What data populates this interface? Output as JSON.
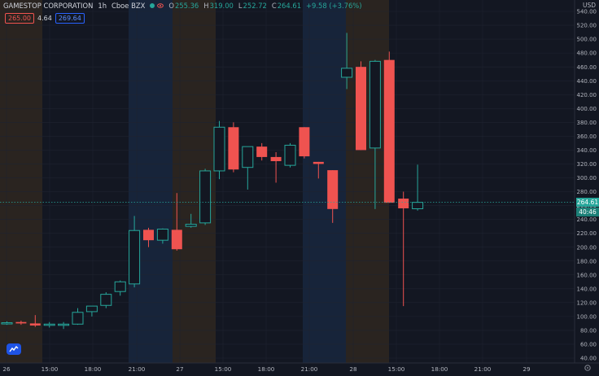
{
  "header": {
    "symbol": "GAMESTOP CORPORATION",
    "interval": "1h",
    "exchange": "Cboe BZX",
    "open_label": "O",
    "open_value": "255.36",
    "high_label": "H",
    "high_value": "319.00",
    "low_label": "L",
    "low_value": "252.72",
    "close_label": "C",
    "close_value": "264.61",
    "change_text": "+9.58 (+3.76%)"
  },
  "quote": {
    "sell": "265.00",
    "spread": "4.64",
    "buy": "269.64"
  },
  "price_axis": {
    "currency": "USD",
    "ticks": [
      "540.00",
      "520.00",
      "500.00",
      "480.00",
      "460.00",
      "440.00",
      "420.00",
      "400.00",
      "380.00",
      "360.00",
      "340.00",
      "320.00",
      "300.00",
      "280.00",
      "260.00",
      "240.00",
      "220.00",
      "200.00",
      "180.00",
      "160.00",
      "140.00",
      "120.00",
      "100.00",
      "80.00",
      "60.00",
      "40.00"
    ],
    "last_price_label": "264.61",
    "countdown_label": "40:46"
  },
  "time_axis": {
    "labels": [
      "26",
      "15:00",
      "18:00",
      "21:00",
      "27",
      "15:00",
      "18:00",
      "21:00",
      "28",
      "15:00",
      "18:00",
      "21:00",
      "29"
    ]
  },
  "colors": {
    "background": "#131722",
    "up": "#26a69a",
    "down": "#ef5350",
    "session_pre": "#2a2420",
    "session_post": "#17243a",
    "grid": "#1f2330"
  },
  "chart_data": {
    "type": "candlestick",
    "title": "GAMESTOP CORPORATION · 1h · Cboe BZX",
    "xlabel": "",
    "ylabel": "",
    "currency": "USD",
    "ylim": [
      40,
      545
    ],
    "last_price": 264.61,
    "candles": [
      {
        "o": 90,
        "h": 93,
        "l": 88,
        "c": 91
      },
      {
        "o": 92,
        "h": 94,
        "l": 88,
        "c": 90
      },
      {
        "o": 90,
        "h": 102,
        "l": 85,
        "c": 87
      },
      {
        "o": 88,
        "h": 92,
        "l": 84,
        "c": 89
      },
      {
        "o": 88,
        "h": 92,
        "l": 82,
        "c": 89
      },
      {
        "o": 89,
        "h": 112,
        "l": 88,
        "c": 106
      },
      {
        "o": 107,
        "h": 115,
        "l": 100,
        "c": 115
      },
      {
        "o": 116,
        "h": 135,
        "l": 112,
        "c": 132
      },
      {
        "o": 136,
        "h": 152,
        "l": 130,
        "c": 150
      },
      {
        "o": 147,
        "h": 245,
        "l": 142,
        "c": 224
      },
      {
        "o": 225,
        "h": 228,
        "l": 200,
        "c": 210
      },
      {
        "o": 210,
        "h": 227,
        "l": 205,
        "c": 226
      },
      {
        "o": 225,
        "h": 278,
        "l": 195,
        "c": 197
      },
      {
        "o": 230,
        "h": 248,
        "l": 228,
        "c": 233
      },
      {
        "o": 235,
        "h": 313,
        "l": 232,
        "c": 310
      },
      {
        "o": 310,
        "h": 382,
        "l": 298,
        "c": 373
      },
      {
        "o": 373,
        "h": 380,
        "l": 308,
        "c": 312
      },
      {
        "o": 315,
        "h": 345,
        "l": 283,
        "c": 345
      },
      {
        "o": 345,
        "h": 350,
        "l": 325,
        "c": 330
      },
      {
        "o": 330,
        "h": 337,
        "l": 293,
        "c": 324
      },
      {
        "o": 318,
        "h": 350,
        "l": 315,
        "c": 347
      },
      {
        "o": 373,
        "h": 373,
        "l": 328,
        "c": 331
      },
      {
        "o": 323,
        "h": 323,
        "l": 299,
        "c": 320
      },
      {
        "o": 311,
        "h": 311,
        "l": 235,
        "c": 255
      },
      {
        "o": 445,
        "h": 509,
        "l": 428,
        "c": 458
      },
      {
        "o": 460,
        "h": 468,
        "l": 340,
        "c": 340
      },
      {
        "o": 343,
        "h": 470,
        "l": 255,
        "c": 468
      },
      {
        "o": 470,
        "h": 482,
        "l": 264,
        "c": 264
      },
      {
        "o": 270,
        "h": 280,
        "l": 115,
        "c": 256
      },
      {
        "o": 255.36,
        "h": 319,
        "l": 252.72,
        "c": 264.61
      }
    ]
  }
}
